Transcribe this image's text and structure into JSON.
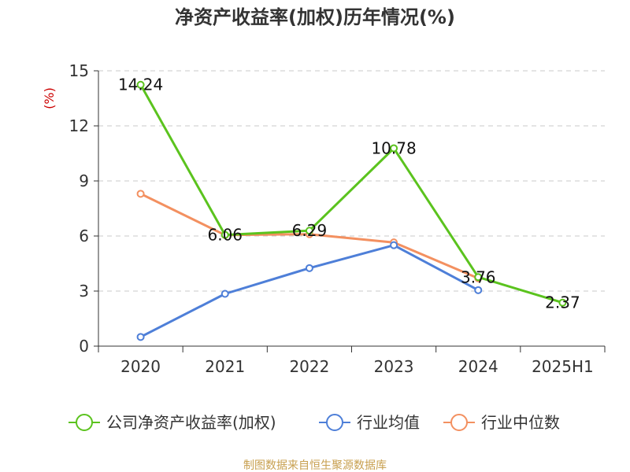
{
  "chart_data": {
    "type": "line",
    "title": "净资产收益率(加权)历年情况(%)",
    "ylabel": "(%)",
    "categories": [
      "2020",
      "2021",
      "2022",
      "2023",
      "2024",
      "2025H1"
    ],
    "ylim": [
      0,
      15
    ],
    "yticks": [
      0,
      3,
      6,
      9,
      12,
      15
    ],
    "grid": true,
    "legend_position": "bottom",
    "series": [
      {
        "name": "公司净资产收益率(加权)",
        "color": "#5bc31e",
        "values": [
          14.24,
          6.06,
          6.29,
          10.78,
          3.76,
          2.37
        ],
        "labels": [
          "14.24",
          "6.06",
          "6.29",
          "10.78",
          "3.76",
          "2.37"
        ]
      },
      {
        "name": "行业均值",
        "color": "#4e7fd8",
        "values": [
          0.5,
          2.85,
          4.25,
          5.5,
          3.05,
          null
        ]
      },
      {
        "name": "行业中位数",
        "color": "#f39060",
        "values": [
          8.3,
          6.05,
          6.1,
          5.65,
          3.7,
          null
        ]
      }
    ]
  },
  "source": "制图数据来自恒生聚源数据库"
}
